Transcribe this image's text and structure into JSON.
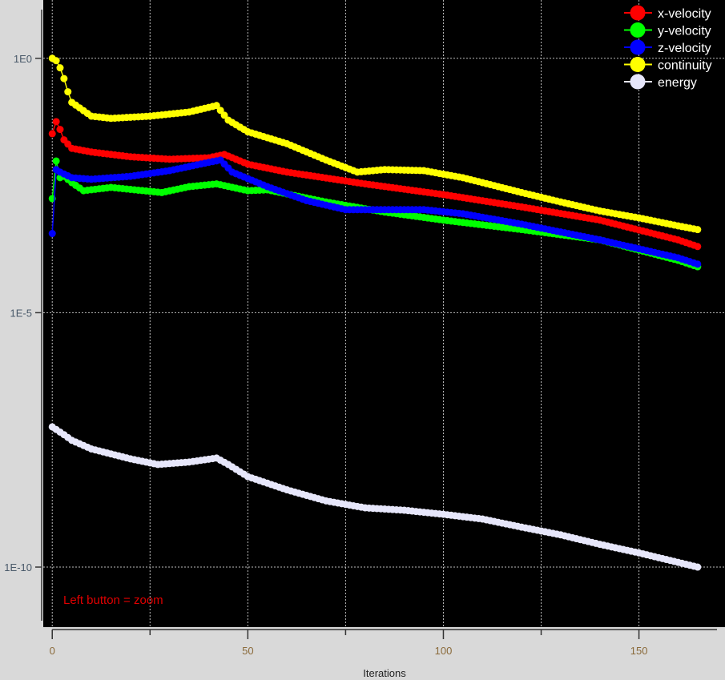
{
  "chart_data": {
    "type": "line",
    "xlabel": "Iterations",
    "ylabel": "",
    "yscale": "log",
    "xlim": [
      -2.3,
      172
    ],
    "ylim": [
      6.6e-12,
      14
    ],
    "grid": true,
    "legend_placement": "top-right",
    "x_ticks": [
      0,
      50,
      100,
      150
    ],
    "x_tick_labels": [
      "0",
      "50",
      "100",
      "150"
    ],
    "x_minor_ticks": [
      25,
      75,
      125
    ],
    "y_ticks": [
      1,
      1e-05,
      1e-10
    ],
    "y_tick_labels": [
      "1E0",
      "1E-5",
      "1E-10"
    ],
    "annotation": "Left button = zoom",
    "annotation_color": "#e00000",
    "last_iteration": 165,
    "series": [
      {
        "name": "x-velocity",
        "color": "#ff0000",
        "points": [
          [
            0,
            0.033
          ],
          [
            1,
            0.057
          ],
          [
            2,
            0.04
          ],
          [
            3,
            0.025
          ],
          [
            5,
            0.017
          ],
          [
            10,
            0.0144
          ],
          [
            20,
            0.0116
          ],
          [
            30,
            0.0104
          ],
          [
            40,
            0.0111
          ],
          [
            44,
            0.0129
          ],
          [
            50,
            0.0083
          ],
          [
            60,
            0.0058
          ],
          [
            80,
            0.0034
          ],
          [
            100,
            0.0021
          ],
          [
            120,
            0.0012
          ],
          [
            140,
            0.00066
          ],
          [
            160,
            0.00027
          ],
          [
            165,
            0.0002
          ]
        ]
      },
      {
        "name": "y-velocity",
        "color": "#00ff00",
        "points": [
          [
            0,
            0.00175
          ],
          [
            1,
            0.0096
          ],
          [
            2,
            0.0045
          ],
          [
            3,
            0.0048
          ],
          [
            5,
            0.0036
          ],
          [
            8,
            0.0025
          ],
          [
            15,
            0.0029
          ],
          [
            28,
            0.0023
          ],
          [
            35,
            0.003
          ],
          [
            42,
            0.0034
          ],
          [
            50,
            0.0025
          ],
          [
            55,
            0.0026
          ],
          [
            70,
            0.0015
          ],
          [
            85,
            0.00095
          ],
          [
            100,
            0.00066
          ],
          [
            120,
            0.00043
          ],
          [
            140,
            0.00027
          ],
          [
            160,
            0.000107
          ],
          [
            165,
            8e-05
          ]
        ]
      },
      {
        "name": "z-velocity",
        "color": "#0000ff",
        "points": [
          [
            0,
            0.00036
          ],
          [
            1,
            0.0065
          ],
          [
            2,
            0.0058
          ],
          [
            5,
            0.0045
          ],
          [
            10,
            0.0042
          ],
          [
            20,
            0.0048
          ],
          [
            30,
            0.0062
          ],
          [
            40,
            0.009
          ],
          [
            43,
            0.01
          ],
          [
            46,
            0.0058
          ],
          [
            55,
            0.003
          ],
          [
            65,
            0.0016
          ],
          [
            75,
            0.00106
          ],
          [
            85,
            0.00106
          ],
          [
            95,
            0.00106
          ],
          [
            105,
            0.00088
          ],
          [
            120,
            0.00055
          ],
          [
            140,
            0.00027
          ],
          [
            160,
            0.00012
          ],
          [
            165,
            9e-05
          ]
        ]
      },
      {
        "name": "continuity",
        "color": "#ffff00",
        "points": [
          [
            0,
            1.0
          ],
          [
            1,
            0.9
          ],
          [
            2,
            0.65
          ],
          [
            3,
            0.4
          ],
          [
            4,
            0.22
          ],
          [
            5,
            0.136
          ],
          [
            10,
            0.073
          ],
          [
            15,
            0.066
          ],
          [
            25,
            0.073
          ],
          [
            35,
            0.088
          ],
          [
            42,
            0.118
          ],
          [
            45,
            0.061
          ],
          [
            50,
            0.036
          ],
          [
            60,
            0.021
          ],
          [
            70,
            0.01
          ],
          [
            78,
            0.0058
          ],
          [
            85,
            0.0065
          ],
          [
            95,
            0.0062
          ],
          [
            105,
            0.0045
          ],
          [
            110,
            0.0036
          ],
          [
            120,
            0.0023
          ],
          [
            130,
            0.0015
          ],
          [
            140,
            0.001
          ],
          [
            150,
            0.00073
          ],
          [
            160,
            0.00051
          ],
          [
            165,
            0.00043
          ]
        ]
      },
      {
        "name": "energy",
        "color": "#e6e6fa",
        "points": [
          [
            0,
            5.7e-08
          ],
          [
            3,
            4e-08
          ],
          [
            5,
            3.1e-08
          ],
          [
            10,
            2.1e-08
          ],
          [
            20,
            1.34e-08
          ],
          [
            27,
            1.04e-08
          ],
          [
            35,
            1.16e-08
          ],
          [
            42,
            1.39e-08
          ],
          [
            45,
            1.04e-08
          ],
          [
            50,
            6e-09
          ],
          [
            60,
            3.3e-09
          ],
          [
            70,
            2e-09
          ],
          [
            80,
            1.46e-09
          ],
          [
            90,
            1.31e-09
          ],
          [
            100,
            1.09e-09
          ],
          [
            110,
            8.8e-10
          ],
          [
            120,
            6.1e-10
          ],
          [
            130,
            4.3e-10
          ],
          [
            140,
            2.8e-10
          ],
          [
            150,
            1.9e-10
          ],
          [
            160,
            1.24e-10
          ],
          [
            165,
            1e-10
          ]
        ]
      }
    ]
  }
}
